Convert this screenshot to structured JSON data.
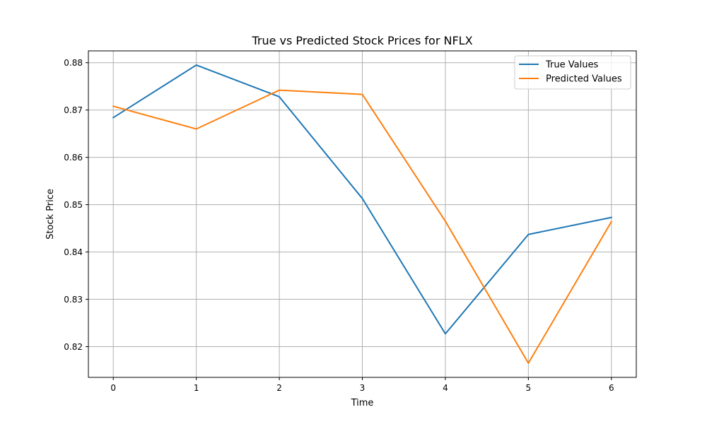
{
  "chart_data": {
    "type": "line",
    "title": "True vs Predicted Stock Prices for NFLX",
    "xlabel": "Time",
    "ylabel": "Stock Price",
    "x": [
      0,
      1,
      2,
      3,
      4,
      5,
      6
    ],
    "xlim": [
      -0.3,
      6.3
    ],
    "ylim": [
      0.8135,
      0.8825
    ],
    "xticks": [
      "0",
      "1",
      "2",
      "3",
      "4",
      "5",
      "6"
    ],
    "yticks": [
      "0.82",
      "0.83",
      "0.84",
      "0.85",
      "0.86",
      "0.87",
      "0.88"
    ],
    "grid": true,
    "legend_position": "top-right",
    "series": [
      {
        "name": "True Values",
        "color": "#1f77b4",
        "values": [
          0.8684,
          0.8795,
          0.8728,
          0.8513,
          0.8227,
          0.8437,
          0.8473
        ]
      },
      {
        "name": "Predicted Values",
        "color": "#ff7f0e",
        "values": [
          0.8708,
          0.866,
          0.8742,
          0.8733,
          0.8465,
          0.8165,
          0.8464
        ]
      }
    ]
  }
}
